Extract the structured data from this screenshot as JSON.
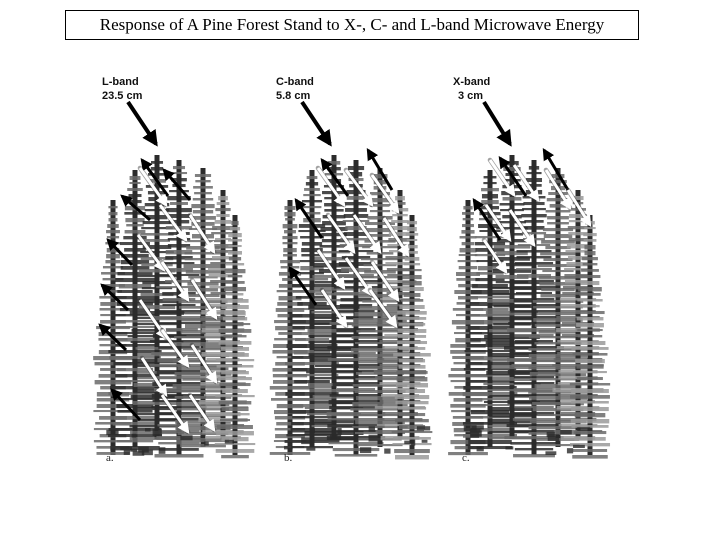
{
  "title": "Response of A Pine Forest Stand to X-, C- and L-band Microwave Energy",
  "panels": [
    {
      "id": "a",
      "band": "L-band",
      "wavelength": "23.5 cm",
      "letter": "a."
    },
    {
      "id": "b",
      "band": "C-band",
      "wavelength": "5.8 cm",
      "letter": "b."
    },
    {
      "id": "c",
      "band": "X-band",
      "wavelength": "3 cm",
      "letter": "c."
    }
  ],
  "colors": {
    "background": "#ffffff",
    "incident_arrow": "#000000",
    "scatter_arrow_dark": "#000000",
    "scatter_arrow_light": "#ffffff",
    "tree_dark": "#2b2b2b",
    "tree_mid": "#6a6a6a",
    "tree_light": "#9a9a9a"
  }
}
